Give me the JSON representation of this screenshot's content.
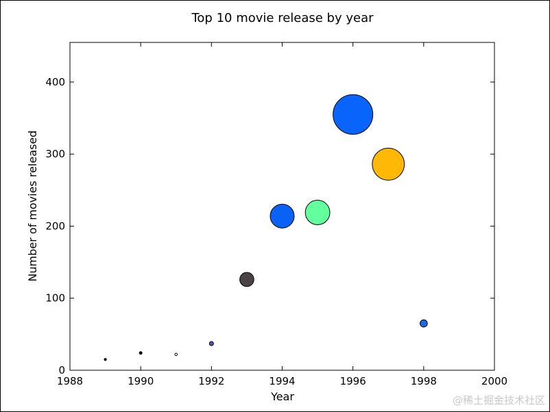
{
  "chart_data": {
    "type": "scatter",
    "title": "Top 10 movie release by year",
    "xlabel": "Year",
    "ylabel": "Number of movies released",
    "xlim": [
      1988,
      2000
    ],
    "ylim": [
      0,
      455
    ],
    "xticks": [
      1988,
      1990,
      1992,
      1994,
      1996,
      1998,
      2000
    ],
    "yticks": [
      0,
      100,
      200,
      300,
      400
    ],
    "grid": false,
    "legend": "none",
    "points": [
      {
        "x": 1989,
        "y": 15,
        "color": "#000000"
      },
      {
        "x": 1990,
        "y": 24,
        "color": "#000000"
      },
      {
        "x": 1991,
        "y": 22,
        "color": "#ffffff"
      },
      {
        "x": 1992,
        "y": 37,
        "color": "#4a5ab4"
      },
      {
        "x": 1993,
        "y": 126,
        "color": "#4a4244"
      },
      {
        "x": 1994,
        "y": 214,
        "color": "#0a62f5"
      },
      {
        "x": 1995,
        "y": 219,
        "color": "#63ff9e"
      },
      {
        "x": 1996,
        "y": 355,
        "color": "#0864fa"
      },
      {
        "x": 1997,
        "y": 286,
        "color": "#ffb806"
      },
      {
        "x": 1998,
        "y": 65,
        "color": "#1a6ae8"
      }
    ]
  },
  "watermark": "@稀土掘金技术社区"
}
